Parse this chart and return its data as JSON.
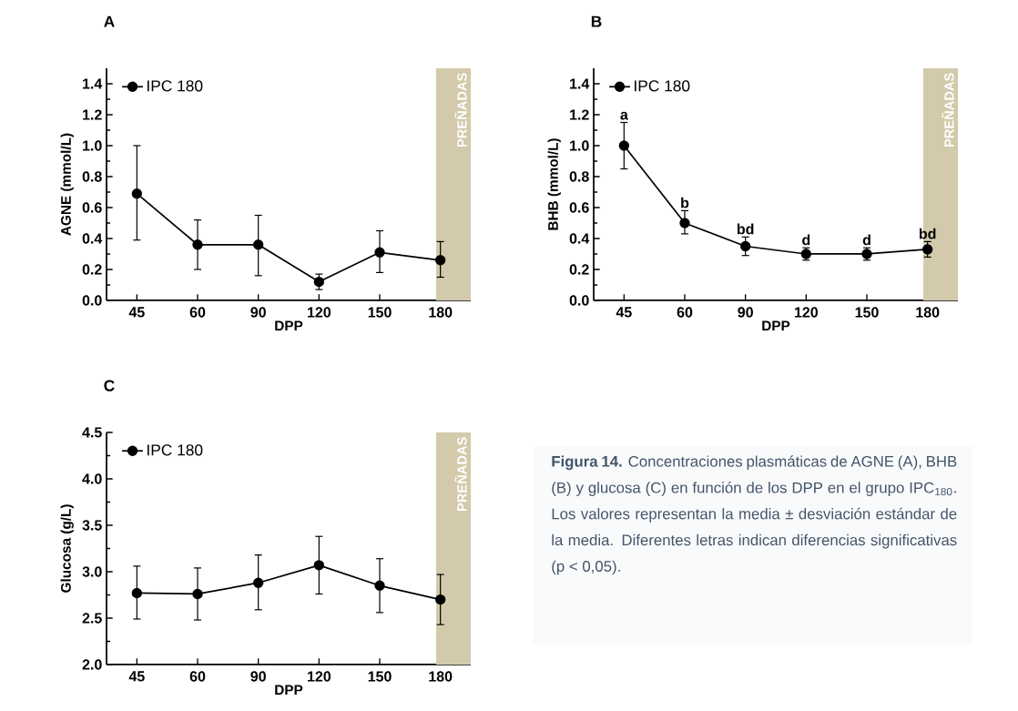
{
  "chart_data": [
    {
      "type": "line",
      "title": "A",
      "xlabel": "DPP",
      "ylabel": "AGNE (mmol/L)",
      "categories": [
        "45",
        "60",
        "90",
        "120",
        "150",
        "180"
      ],
      "series": [
        {
          "name": "IPC 180",
          "color": "#000000",
          "values": [
            0.69,
            0.36,
            0.36,
            0.12,
            0.31,
            0.26
          ],
          "errors": [
            [
              0.39,
              1.0
            ],
            [
              0.2,
              0.52
            ],
            [
              0.16,
              0.55
            ],
            [
              0.07,
              0.17
            ],
            [
              0.18,
              0.45
            ],
            [
              0.15,
              0.38
            ]
          ]
        }
      ],
      "ylim": [
        0,
        1.5
      ],
      "yticks": [
        {
          "value": 0,
          "label": "0.0"
        },
        {
          "value": 0.2,
          "label": "0.2"
        },
        {
          "value": 0.4,
          "label": "0.4"
        },
        {
          "value": 0.6,
          "label": "0.6"
        },
        {
          "value": 0.8,
          "label": "0.8"
        },
        {
          "value": 1.0,
          "label": "1.0"
        },
        {
          "value": 1.2,
          "label": "1.2"
        },
        {
          "value": 1.4,
          "label": "1.4"
        }
      ],
      "bands": [
        {
          "axis": "x",
          "from": "180",
          "to": "180",
          "label": "PREÑADAS",
          "color": "#d3caab"
        }
      ],
      "marker": "circle",
      "line_style": "solid",
      "legend": "top left"
    },
    {
      "type": "line",
      "title": "B",
      "xlabel": "DPP",
      "ylabel": "BHB (mmol/L)",
      "categories": [
        "45",
        "60",
        "90",
        "120",
        "150",
        "180"
      ],
      "series": [
        {
          "name": "IPC 180",
          "color": "#000000",
          "values": [
            1.0,
            0.5,
            0.35,
            0.3,
            0.3,
            0.33
          ],
          "errors": [
            [
              0.85,
              1.15
            ],
            [
              0.43,
              0.58
            ],
            [
              0.29,
              0.41
            ],
            [
              0.26,
              0.34
            ],
            [
              0.26,
              0.34
            ],
            [
              0.28,
              0.38
            ]
          ]
        }
      ],
      "ylim": [
        0,
        1.5
      ],
      "yticks": [
        {
          "value": 0,
          "label": "0.0"
        },
        {
          "value": 0.2,
          "label": "0.2"
        },
        {
          "value": 0.4,
          "label": "0.4"
        },
        {
          "value": 0.6,
          "label": "0.6"
        },
        {
          "value": 0.8,
          "label": "0.8"
        },
        {
          "value": 1.0,
          "label": "1.0"
        },
        {
          "value": 1.2,
          "label": "1.2"
        },
        {
          "value": 1.4,
          "label": "1.4"
        }
      ],
      "bands": [
        {
          "axis": "x",
          "from": "180",
          "to": "180",
          "label": "PREÑADAS",
          "color": "#d3caab"
        }
      ],
      "annotations": [
        {
          "text": "a",
          "x": "45",
          "y": 1.15
        },
        {
          "text": "b",
          "x": "60",
          "y": 0.58
        },
        {
          "text": "bd",
          "x": "90",
          "y": 0.41
        },
        {
          "text": "d",
          "x": "120",
          "y": 0.34
        },
        {
          "text": "d",
          "x": "150",
          "y": 0.34
        },
        {
          "text": "bd",
          "x": "180",
          "y": 0.38
        }
      ],
      "marker": "circle",
      "line_style": "solid",
      "legend": "top left"
    },
    {
      "type": "line",
      "title": "C",
      "xlabel": "DPP",
      "ylabel": "Glucosa (g/L)",
      "categories": [
        "45",
        "60",
        "90",
        "120",
        "150",
        "180"
      ],
      "series": [
        {
          "name": "IPC 180",
          "color": "#000000",
          "values": [
            2.77,
            2.76,
            2.88,
            3.07,
            2.85,
            2.7
          ],
          "errors": [
            [
              2.49,
              3.06
            ],
            [
              2.48,
              3.04
            ],
            [
              2.59,
              3.18
            ],
            [
              2.76,
              3.38
            ],
            [
              2.56,
              3.14
            ],
            [
              2.43,
              2.97
            ]
          ]
        }
      ],
      "ylim": [
        2,
        4.5
      ],
      "yticks": [
        {
          "value": 2,
          "label": "2.0"
        },
        {
          "value": 2.5,
          "label": "2.5"
        },
        {
          "value": 3,
          "label": "3.0"
        },
        {
          "value": 3.5,
          "label": "3.5"
        },
        {
          "value": 4,
          "label": "4.0"
        },
        {
          "value": 4.5,
          "label": "4.5"
        }
      ],
      "bands": [
        {
          "axis": "x",
          "from": "180",
          "to": "180",
          "label": "PREÑADAS",
          "color": "#d3caab"
        }
      ],
      "marker": "circle",
      "line_style": "solid",
      "legend": "top left"
    },
    {
      "type": "other",
      "annotations": [
        "**Figura 14.** Concentraciones plasmáticas de AGNE (A), BHB (B) y glucosa (C) en función de los DPP en el grupo IPC$_{180}$. Los valores representan la media ± desviación estándar de la media. Diferentes letras indican diferencias significativas (p < 0,05)."
      ]
    }
  ]
}
